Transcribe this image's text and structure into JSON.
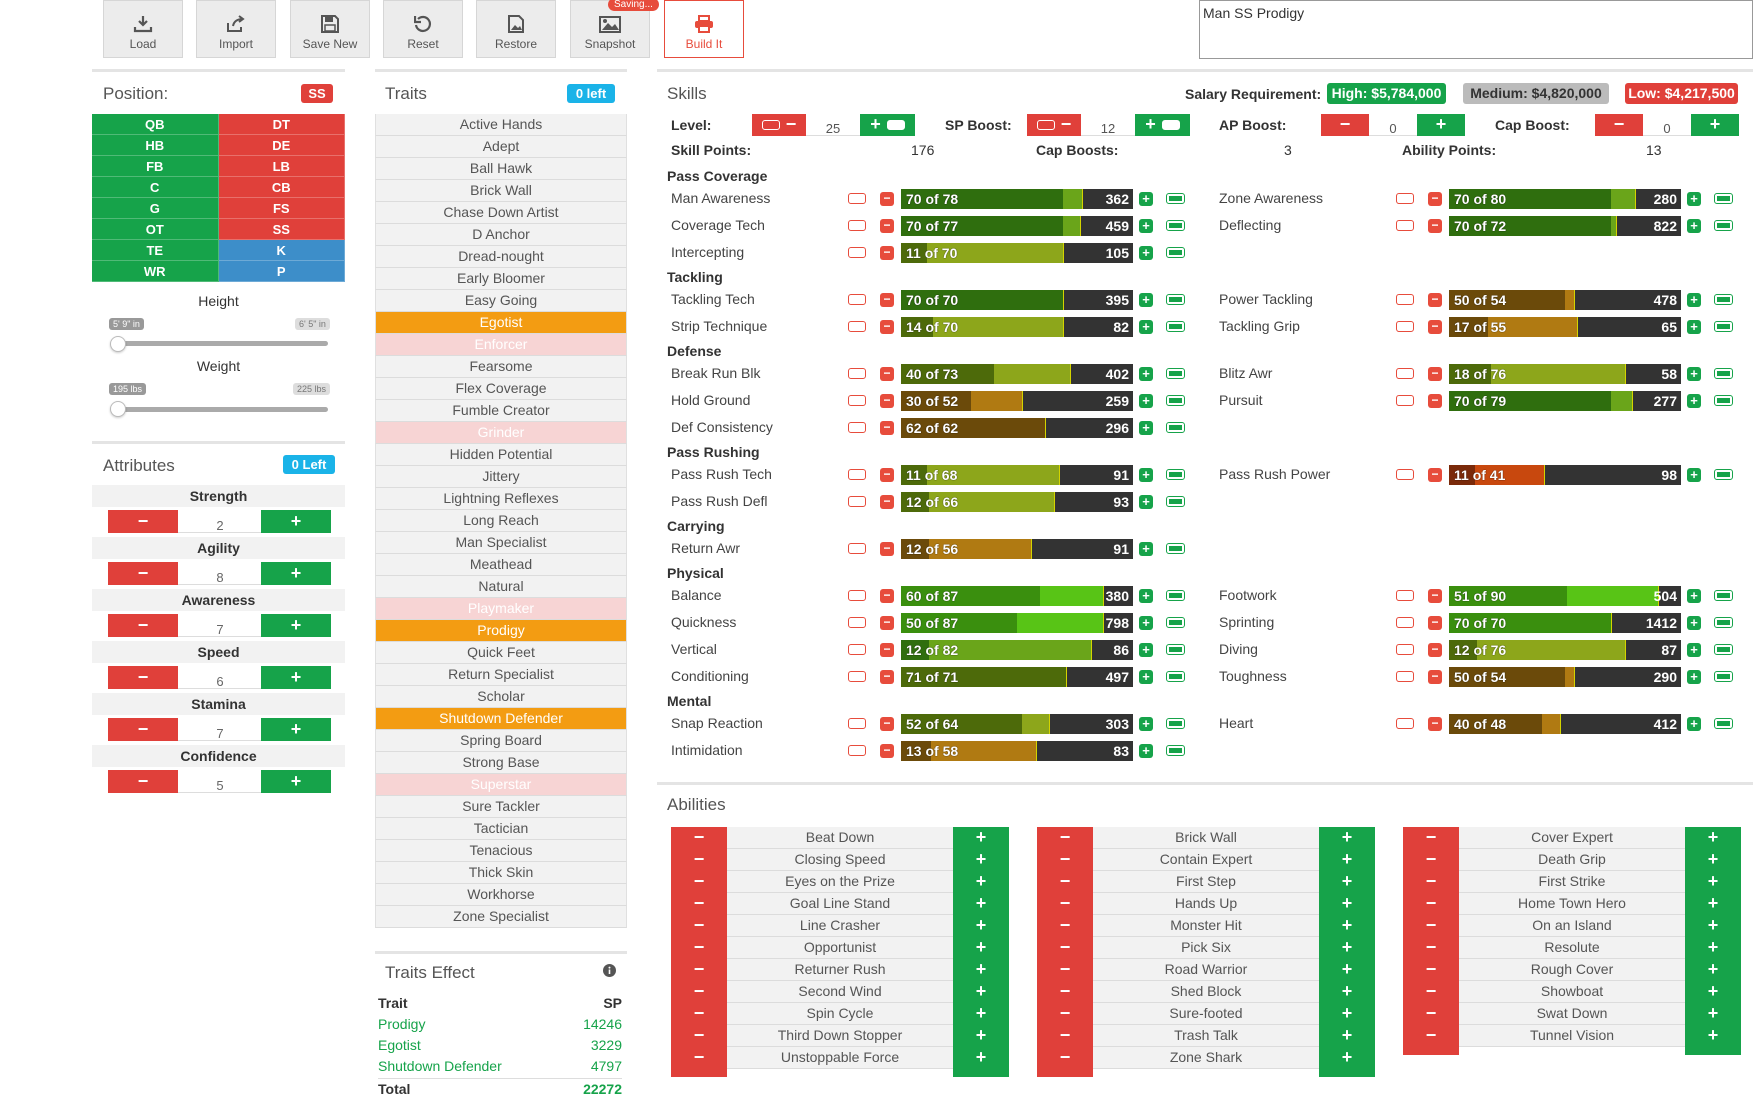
{
  "toolbar": {
    "load": "Load",
    "import": "Import",
    "save_new": "Save New",
    "reset": "Reset",
    "restore": "Restore",
    "snapshot": "Snapshot",
    "saving": "Saving...",
    "build_it": "Build It",
    "build_name": "Man SS Prodigy"
  },
  "position": {
    "title": "Position:",
    "selected": "SS",
    "grid": [
      [
        "QB",
        "DT"
      ],
      [
        "HB",
        "DE"
      ],
      [
        "FB",
        "LB"
      ],
      [
        "C",
        "CB"
      ],
      [
        "G",
        "FS"
      ],
      [
        "OT",
        "SS"
      ],
      [
        "TE",
        "K"
      ],
      [
        "WR",
        "P"
      ]
    ],
    "height_label": "Height",
    "height_min": "5' 9\" in",
    "height_max": "6' 5\" in",
    "height_value": 0,
    "weight_label": "Weight",
    "weight_min": "195 lbs",
    "weight_max": "225 lbs",
    "weight_value": 0
  },
  "attributes": {
    "title": "Attributes",
    "left": "0 Left",
    "items": [
      {
        "label": "Strength",
        "value": "2"
      },
      {
        "label": "Agility",
        "value": "8"
      },
      {
        "label": "Awareness",
        "value": "7"
      },
      {
        "label": "Speed",
        "value": "6"
      },
      {
        "label": "Stamina",
        "value": "7"
      },
      {
        "label": "Confidence",
        "value": "5"
      }
    ],
    "minus": "−",
    "plus": "+"
  },
  "traits": {
    "title": "Traits",
    "left": "0 left",
    "items": [
      {
        "label": "Active Hands",
        "state": "normal"
      },
      {
        "label": "Adept",
        "state": "normal"
      },
      {
        "label": "Ball Hawk",
        "state": "normal"
      },
      {
        "label": "Brick Wall",
        "state": "normal"
      },
      {
        "label": "Chase Down Artist",
        "state": "normal"
      },
      {
        "label": "D Anchor",
        "state": "normal"
      },
      {
        "label": "Dread-nought",
        "state": "normal"
      },
      {
        "label": "Early Bloomer",
        "state": "normal"
      },
      {
        "label": "Easy Going",
        "state": "normal"
      },
      {
        "label": "Egotist",
        "state": "selected"
      },
      {
        "label": "Enforcer",
        "state": "disabled"
      },
      {
        "label": "Fearsome",
        "state": "normal"
      },
      {
        "label": "Flex Coverage",
        "state": "normal"
      },
      {
        "label": "Fumble Creator",
        "state": "normal"
      },
      {
        "label": "Grinder",
        "state": "disabled"
      },
      {
        "label": "Hidden Potential",
        "state": "normal"
      },
      {
        "label": "Jittery",
        "state": "normal"
      },
      {
        "label": "Lightning Reflexes",
        "state": "normal"
      },
      {
        "label": "Long Reach",
        "state": "normal"
      },
      {
        "label": "Man Specialist",
        "state": "normal"
      },
      {
        "label": "Meathead",
        "state": "normal"
      },
      {
        "label": "Natural",
        "state": "normal"
      },
      {
        "label": "Playmaker",
        "state": "disabled"
      },
      {
        "label": "Prodigy",
        "state": "selected"
      },
      {
        "label": "Quick Feet",
        "state": "normal"
      },
      {
        "label": "Return Specialist",
        "state": "normal"
      },
      {
        "label": "Scholar",
        "state": "normal"
      },
      {
        "label": "Shutdown Defender",
        "state": "selected"
      },
      {
        "label": "Spring Board",
        "state": "normal"
      },
      {
        "label": "Strong Base",
        "state": "normal"
      },
      {
        "label": "Superstar",
        "state": "disabled"
      },
      {
        "label": "Sure Tackler",
        "state": "normal"
      },
      {
        "label": "Tactician",
        "state": "normal"
      },
      {
        "label": "Tenacious",
        "state": "normal"
      },
      {
        "label": "Thick Skin",
        "state": "normal"
      },
      {
        "label": "Workhorse",
        "state": "normal"
      },
      {
        "label": "Zone Specialist",
        "state": "normal"
      }
    ]
  },
  "traits_effect": {
    "title": "Traits Effect",
    "col_trait": "Trait",
    "col_sp": "SP",
    "rows": [
      {
        "trait": "Prodigy",
        "sp": "14246"
      },
      {
        "trait": "Egotist",
        "sp": "3229"
      },
      {
        "trait": "Shutdown Defender",
        "sp": "4797"
      }
    ],
    "total_label": "Total",
    "total": "22272"
  },
  "skills": {
    "title": "Skills",
    "salary_label": "Salary Requirement:",
    "salary_high": "High: $5,784,000",
    "salary_medium": "Medium: $4,820,000",
    "salary_low": "Low: $4,217,500",
    "level_label": "Level:",
    "level": "25",
    "sp_boost_label": "SP Boost:",
    "sp_boost": "12",
    "ap_boost_label": "AP Boost:",
    "ap_boost": "0",
    "cap_boost_label": "Cap Boost:",
    "cap_boost": "0",
    "skill_points_label": "Skill Points:",
    "skill_points": "176",
    "cap_boosts_label": "Cap Boosts:",
    "cap_boosts": "3",
    "ability_points_label": "Ability Points:",
    "ability_points": "13",
    "categories": [
      {
        "name": "Pass Coverage",
        "rows": [
          [
            {
              "name": "Man Awareness",
              "cur": 70,
              "cap": 78,
              "cost": "362",
              "color": "green"
            },
            {
              "name": "Zone Awareness",
              "cur": 70,
              "cap": 80,
              "cost": "280",
              "color": "green"
            }
          ],
          [
            {
              "name": "Coverage Tech",
              "cur": 70,
              "cap": 77,
              "cost": "459",
              "color": "green"
            },
            {
              "name": "Deflecting",
              "cur": 70,
              "cap": 72,
              "cost": "822",
              "color": "green"
            }
          ],
          [
            {
              "name": "Intercepting",
              "cur": 11,
              "cap": 70,
              "cost": "105",
              "color": "olive"
            },
            null
          ]
        ]
      },
      {
        "name": "Tackling",
        "rows": [
          [
            {
              "name": "Tackling Tech",
              "cur": 70,
              "cap": 70,
              "cost": "395",
              "color": "green"
            },
            {
              "name": "Power Tackling",
              "cur": 50,
              "cap": 54,
              "cost": "478",
              "color": "brown"
            }
          ],
          [
            {
              "name": "Strip Technique",
              "cur": 14,
              "cap": 70,
              "cost": "82",
              "color": "olive"
            },
            {
              "name": "Tackling Grip",
              "cur": 17,
              "cap": 55,
              "cost": "65",
              "color": "brown"
            }
          ]
        ]
      },
      {
        "name": "Defense",
        "rows": [
          [
            {
              "name": "Break Run Blk",
              "cur": 40,
              "cap": 73,
              "cost": "402",
              "color": "olive"
            },
            {
              "name": "Blitz Awr",
              "cur": 18,
              "cap": 76,
              "cost": "58",
              "color": "olive"
            }
          ],
          [
            {
              "name": "Hold Ground",
              "cur": 30,
              "cap": 52,
              "cost": "259",
              "color": "brown"
            },
            {
              "name": "Pursuit",
              "cur": 70,
              "cap": 79,
              "cost": "277",
              "color": "green"
            }
          ],
          [
            {
              "name": "Def Consistency",
              "cur": 62,
              "cap": 62,
              "cost": "296",
              "color": "brown"
            },
            null
          ]
        ]
      },
      {
        "name": "Pass Rushing",
        "rows": [
          [
            {
              "name": "Pass Rush Tech",
              "cur": 11,
              "cap": 68,
              "cost": "91",
              "color": "olive"
            },
            {
              "name": "Pass Rush Power",
              "cur": 11,
              "cap": 41,
              "cost": "98",
              "color": "red"
            }
          ],
          [
            {
              "name": "Pass Rush Defl",
              "cur": 12,
              "cap": 66,
              "cost": "93",
              "color": "olive"
            },
            null
          ]
        ]
      },
      {
        "name": "Carrying",
        "rows": [
          [
            {
              "name": "Return Awr",
              "cur": 12,
              "cap": 56,
              "cost": "91",
              "color": "brown"
            },
            null
          ]
        ]
      },
      {
        "name": "Physical",
        "rows": [
          [
            {
              "name": "Balance",
              "cur": 60,
              "cap": 87,
              "cost": "380",
              "color": "bright"
            },
            {
              "name": "Footwork",
              "cur": 51,
              "cap": 90,
              "cost": "504",
              "color": "bright"
            }
          ],
          [
            {
              "name": "Quickness",
              "cur": 50,
              "cap": 87,
              "cost": "798",
              "color": "bright"
            },
            {
              "name": "Sprinting",
              "cur": 70,
              "cap": 70,
              "cost": "1412",
              "color": "bright"
            }
          ],
          [
            {
              "name": "Vertical",
              "cur": 12,
              "cap": 82,
              "cost": "86",
              "color": "green"
            },
            {
              "name": "Diving",
              "cur": 12,
              "cap": 76,
              "cost": "87",
              "color": "olive"
            }
          ],
          [
            {
              "name": "Conditioning",
              "cur": 71,
              "cap": 71,
              "cost": "497",
              "color": "olive"
            },
            {
              "name": "Toughness",
              "cur": 50,
              "cap": 54,
              "cost": "290",
              "color": "brown"
            }
          ]
        ]
      },
      {
        "name": "Mental",
        "rows": [
          [
            {
              "name": "Snap Reaction",
              "cur": 52,
              "cap": 64,
              "cost": "303",
              "color": "olive"
            },
            {
              "name": "Heart",
              "cur": 40,
              "cap": 48,
              "cost": "412",
              "color": "brown"
            }
          ],
          [
            {
              "name": "Intimidation",
              "cur": 13,
              "cap": 58,
              "cost": "83",
              "color": "brown"
            },
            null
          ]
        ]
      }
    ]
  },
  "abilities": {
    "title": "Abilities",
    "columns": [
      [
        "Beat Down",
        "Closing Speed",
        "Eyes on the Prize",
        "Goal Line Stand",
        "Line Crasher",
        "Opportunist",
        "Returner Rush",
        "Second Wind",
        "Spin Cycle",
        "Third Down Stopper",
        "Unstoppable Force"
      ],
      [
        "Brick Wall",
        "Contain Expert",
        "First Step",
        "Hands Up",
        "Monster Hit",
        "Pick Six",
        "Road Warrior",
        "Shed Block",
        "Sure-footed",
        "Trash Talk",
        "Zone Shark"
      ],
      [
        "Cover Expert",
        "Death Grip",
        "First Strike",
        "Home Town Hero",
        "On an Island",
        "Resolute",
        "Rough Cover",
        "Showboat",
        "Swat Down",
        "Tunnel Vision"
      ]
    ]
  },
  "colors": {
    "green": "#16a34a",
    "red": "#e0403a",
    "blue": "#3d8ec9",
    "orange": "#f39c12",
    "cyan": "#1ab3e8"
  }
}
